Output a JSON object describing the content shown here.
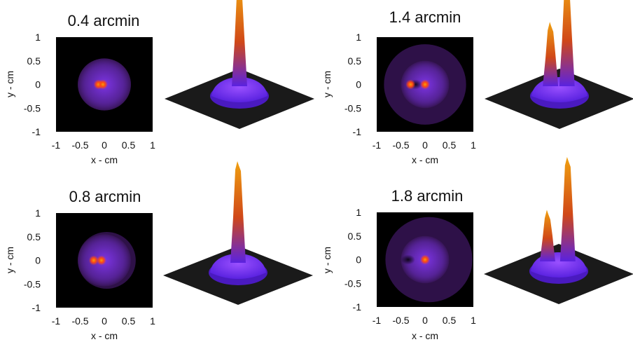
{
  "chart_data": [
    {
      "type": "heatmap",
      "title": "0.4 arcmin",
      "xlabel": "x - cm",
      "ylabel": "y - cm",
      "xlim": [
        -1,
        1
      ],
      "ylim": [
        -1,
        1
      ],
      "xticks": [
        "-1",
        "-0.5",
        "0",
        "0.5",
        "1"
      ],
      "yticks": [
        "1",
        "0.5",
        "0",
        "-0.5",
        "-1"
      ],
      "disk_radius": 0.55,
      "halo_radius": 0.55,
      "halo_center_x": 0.0,
      "hot_spots": [
        {
          "x": -0.12,
          "y": 0.0
        },
        {
          "x": -0.03,
          "y": 0.0
        }
      ],
      "dark_spots": []
    },
    {
      "type": "heatmap",
      "title": "1.4 arcmin",
      "xlabel": "x - cm",
      "ylabel": "y - cm",
      "xlim": [
        -1,
        1
      ],
      "ylim": [
        -1,
        1
      ],
      "xticks": [
        "-1",
        "-0.5",
        "0",
        "0.5",
        "1"
      ],
      "yticks": [
        "1",
        "0.5",
        "0",
        "-0.5",
        "-1"
      ],
      "disk_radius": 0.5,
      "halo_radius": 0.85,
      "halo_center_x": 0.0,
      "hot_spots": [
        {
          "x": -0.3,
          "y": 0.0
        },
        {
          "x": 0.0,
          "y": 0.0
        }
      ],
      "dark_spots": [
        {
          "x": -0.2,
          "y": 0.0
        }
      ]
    },
    {
      "type": "heatmap",
      "title": "0.8 arcmin",
      "xlabel": "x - cm",
      "ylabel": "y - cm",
      "xlim": [
        -1,
        1
      ],
      "ylim": [
        -1,
        1
      ],
      "xticks": [
        "-1",
        "-0.5",
        "0",
        "0.5",
        "1"
      ],
      "yticks": [
        "1",
        "0.5",
        "0",
        "-0.5",
        "-1"
      ],
      "disk_radius": 0.55,
      "halo_radius": 0.6,
      "halo_center_x": 0.05,
      "hot_spots": [
        {
          "x": -0.22,
          "y": 0.0
        },
        {
          "x": -0.06,
          "y": 0.0
        }
      ],
      "dark_spots": []
    },
    {
      "type": "heatmap",
      "title": "1.8 arcmin",
      "xlabel": "x - cm",
      "ylabel": "y - cm",
      "xlim": [
        -1,
        1
      ],
      "ylim": [
        -1,
        1
      ],
      "xticks": [
        "-1",
        "-0.5",
        "0",
        "0.5",
        "1"
      ],
      "yticks": [
        "1",
        "0.5",
        "0",
        "-0.5",
        "-1"
      ],
      "disk_radius": 0.5,
      "halo_radius": 0.9,
      "halo_center_x": 0.08,
      "hot_spots": [
        {
          "x": 0.0,
          "y": 0.0
        }
      ],
      "dark_spots": [
        {
          "x": -0.35,
          "y": 0.0
        }
      ]
    }
  ],
  "surfaces": [
    {
      "peaks": [
        {
          "u": 0.0,
          "h": 1.0
        }
      ]
    },
    {
      "peaks": [
        {
          "u": -0.12,
          "h": 0.6
        },
        {
          "u": 0.1,
          "h": 1.0
        }
      ]
    },
    {
      "peaks": [
        {
          "u": 0.0,
          "h": 1.0
        }
      ]
    },
    {
      "peaks": [
        {
          "u": -0.15,
          "h": 0.45
        },
        {
          "u": 0.12,
          "h": 1.0
        }
      ]
    }
  ],
  "colors": {
    "plot_bg": "#000000",
    "disk": "#8a3aff",
    "halo": "#3d1760",
    "hot": "#ff4a10",
    "peak_top": "#f0a010",
    "peak_mid": "#d04818",
    "surface_base": "#5a22e0",
    "floor": "#1a1a1a"
  }
}
